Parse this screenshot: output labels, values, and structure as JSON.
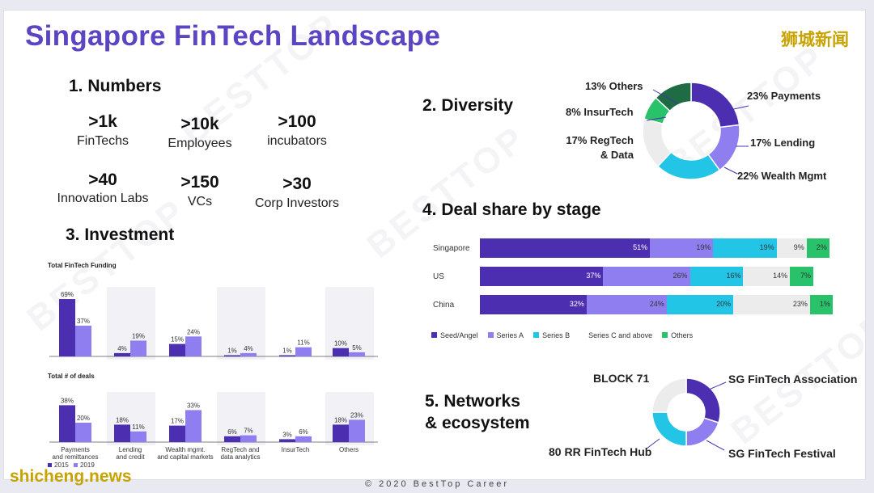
{
  "slide_title": "Singapore FinTech Landscape",
  "brand_cn": "狮城新闻",
  "brand_en": "shicheng.news",
  "watermark": "BESTTOP",
  "footer": "© 2020 BestTop Career",
  "colors": {
    "purple_dark": "#4c2fb0",
    "purple_light": "#8e7ef0",
    "cyan": "#22c5e6",
    "grey": "#ececec",
    "green": "#28c26a",
    "dark_green": "#1e6b44"
  },
  "numbers": {
    "heading": "1. Numbers",
    "items": [
      {
        "value": ">1k",
        "label": "FinTechs"
      },
      {
        "value": ">10k",
        "label": "Employees"
      },
      {
        "value": ">100",
        "label": "incubators"
      },
      {
        "value": ">40",
        "label": "Innovation Labs"
      },
      {
        "value": ">150",
        "label": "VCs"
      },
      {
        "value": ">30",
        "label": "Corp Investors"
      }
    ]
  },
  "diversity": {
    "heading": "2. Diversity",
    "label_others": "13% Others",
    "label_insurtech": "8% InsurTech",
    "label_regtech_1": "17% RegTech",
    "label_regtech_2": "& Data",
    "label_payments": "23% Payments",
    "label_lending": "17% Lending",
    "label_wealth": "22% Wealth Mgmt"
  },
  "investment": {
    "heading": "3. Investment",
    "funding_title": "Total FinTech Funding",
    "deals_title": "Total # of deals",
    "legend_2015": "2015",
    "legend_2019": "2019",
    "cat_lines": [
      [
        "Payments",
        "and remittances"
      ],
      [
        "Lending",
        "and credit"
      ],
      [
        "Wealth mgmt.",
        "and capital markets"
      ],
      [
        "RegTech and",
        "data analytics"
      ],
      [
        "InsurTech",
        ""
      ],
      [
        "Others",
        ""
      ]
    ]
  },
  "deal_share": {
    "heading": "4. Deal share by stage"
  },
  "networks": {
    "heading_1": "5. Networks",
    "heading_2": "& ecosystem",
    "label_block71": "BLOCK 71",
    "label_association": "SG FinTech Association",
    "label_festival": "SG FinTech Festival",
    "label_80rr": "80 RR FinTech Hub"
  },
  "chart_data": [
    {
      "id": "diversity",
      "type": "pie",
      "title": "2. Diversity",
      "labels": [
        "Payments",
        "Lending",
        "Wealth Mgmt",
        "RegTech & Data",
        "InsurTech",
        "Others"
      ],
      "values": [
        23,
        17,
        22,
        17,
        8,
        13
      ],
      "colors": [
        "#4c2fb0",
        "#8e7ef0",
        "#22c5e6",
        "#ececec",
        "#28c26a",
        "#1e6b44"
      ]
    },
    {
      "id": "funding",
      "type": "bar",
      "title": "Total FinTech Funding",
      "categories": [
        "Payments and remittances",
        "Lending and credit",
        "Wealth mgmt. and capital markets",
        "RegTech and data analytics",
        "InsurTech",
        "Others"
      ],
      "series": [
        {
          "name": "2015",
          "values": [
            69,
            4,
            15,
            1,
            1,
            10
          ],
          "color": "#4c2fb0"
        },
        {
          "name": "2019",
          "values": [
            37,
            19,
            24,
            4,
            11,
            5
          ],
          "color": "#8e7ef0"
        }
      ],
      "unit": "%",
      "ylim": [
        0,
        70
      ]
    },
    {
      "id": "deals",
      "type": "bar",
      "title": "Total # of deals",
      "categories": [
        "Payments and remittances",
        "Lending and credit",
        "Wealth mgmt. and capital markets",
        "RegTech and data analytics",
        "InsurTech",
        "Others"
      ],
      "series": [
        {
          "name": "2015",
          "values": [
            38,
            18,
            17,
            6,
            3,
            18
          ],
          "color": "#4c2fb0"
        },
        {
          "name": "2019",
          "values": [
            20,
            11,
            33,
            7,
            6,
            23
          ],
          "color": "#8e7ef0"
        }
      ],
      "unit": "%",
      "ylim": [
        0,
        40
      ]
    },
    {
      "id": "deal_share",
      "type": "bar",
      "stacked": true,
      "orientation": "horizontal",
      "title": "4. Deal share by stage",
      "categories": [
        "Singapore",
        "US",
        "China"
      ],
      "series": [
        {
          "name": "Seed/Angel",
          "values": [
            51,
            37,
            32
          ],
          "labels": [
            "51%",
            "37%",
            "32%"
          ],
          "color": "#4c2fb0"
        },
        {
          "name": "Series A",
          "values": [
            19,
            26,
            24
          ],
          "labels": [
            "19%",
            "26%",
            "24%"
          ],
          "color": "#8e7ef0"
        },
        {
          "name": "Series B",
          "values": [
            19,
            16,
            20
          ],
          "labels": [
            "19%",
            "16%",
            "20%"
          ],
          "color": "#22c5e6"
        },
        {
          "name": "Series C and above",
          "values": [
            9,
            14,
            23
          ],
          "labels": [
            "9%",
            "14%",
            "23%"
          ],
          "color": "#ececec"
        },
        {
          "name": "Others",
          "values": [
            2,
            7,
            1
          ],
          "labels": [
            "2%",
            "7%",
            "1%"
          ],
          "color": "#28c26a"
        }
      ]
    },
    {
      "id": "networks",
      "type": "pie",
      "title": "5. Networks & ecosystem",
      "labels": [
        "SG FinTech Association",
        "SG FinTech Festival",
        "80 RR FinTech Hub",
        "BLOCK 71"
      ],
      "values": [
        30,
        20,
        25,
        25
      ],
      "colors": [
        "#4c2fb0",
        "#8e7ef0",
        "#22c5e6",
        "#ececec"
      ]
    }
  ]
}
